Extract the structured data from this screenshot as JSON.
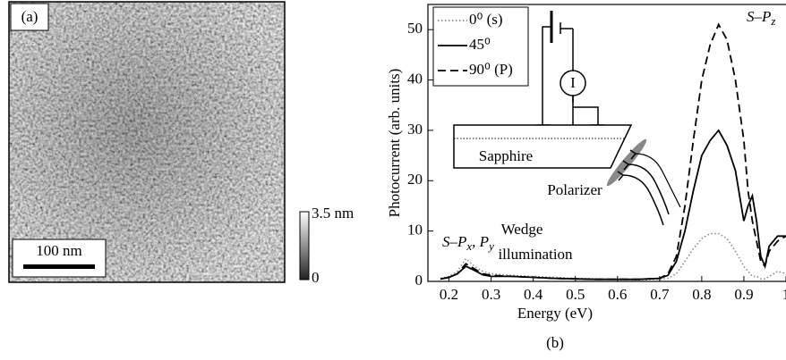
{
  "image_panel": {
    "label": "(a)",
    "scale_bar": "100 nm",
    "colorbar_max": "3.5 nm",
    "colorbar_min": "0"
  },
  "chart_data": {
    "type": "line",
    "panel_label": "(b)",
    "xlabel": "Energy (eV)",
    "ylabel": "Photocurrent (arb. units)",
    "xlim": [
      0.15,
      1.0
    ],
    "ylim": [
      0,
      55
    ],
    "xticks": [
      0.2,
      0.3,
      0.4,
      0.5,
      0.6,
      0.7,
      0.8,
      0.9,
      1
    ],
    "yticks": [
      0,
      10,
      20,
      30,
      40,
      50
    ],
    "legend": "upper left",
    "x": [
      0.18,
      0.2,
      0.22,
      0.24,
      0.26,
      0.28,
      0.3,
      0.35,
      0.4,
      0.45,
      0.5,
      0.55,
      0.6,
      0.65,
      0.7,
      0.72,
      0.74,
      0.76,
      0.78,
      0.8,
      0.82,
      0.84,
      0.86,
      0.88,
      0.9,
      0.91,
      0.92,
      0.93,
      0.94,
      0.95,
      0.96,
      0.98,
      1.0
    ],
    "series": [
      {
        "name": "0⁰ (s)",
        "color": "#888888",
        "dash": "dotted",
        "values": [
          0.6,
          1,
          2,
          4.5,
          3,
          2,
          1.5,
          1.2,
          1,
          0.8,
          0.6,
          0.5,
          0.4,
          0.3,
          0.4,
          0.6,
          1.5,
          4,
          6.5,
          8.5,
          9.5,
          9.5,
          8.5,
          6,
          3,
          2,
          1,
          1,
          0.5,
          0.5,
          1,
          2,
          1.5
        ]
      },
      {
        "name": "45⁰",
        "color": "#000000",
        "dash": "solid",
        "values": [
          0.5,
          0.8,
          1.5,
          3,
          2.2,
          1.3,
          1.0,
          1.0,
          0.8,
          0.6,
          0.5,
          0.4,
          0.4,
          0.4,
          0.6,
          1.2,
          4,
          10,
          18,
          25,
          28,
          30,
          27,
          22,
          12,
          15,
          17,
          12,
          5,
          3,
          7,
          9,
          9
        ]
      },
      {
        "name": "90⁰ (P)",
        "color": "#000000",
        "dash": "dashed",
        "values": [
          0.5,
          0.8,
          1.5,
          3.5,
          2.5,
          1.5,
          1.2,
          1.0,
          0.8,
          0.6,
          0.5,
          0.4,
          0.4,
          0.4,
          0.6,
          1.5,
          5,
          15,
          28,
          40,
          47,
          51,
          48,
          40,
          28,
          18,
          12,
          8,
          4,
          3,
          6,
          8,
          9
        ]
      }
    ],
    "annotations": [
      [
        "S–P",
        "z"
      ],
      [
        "S–P",
        "x",
        ", P",
        "y"
      ]
    ],
    "inset": {
      "meter": "I",
      "substrate": "Sapphire",
      "polarizer": "Polarizer",
      "wedge": "Wedge",
      "illumination": "illumination"
    }
  }
}
